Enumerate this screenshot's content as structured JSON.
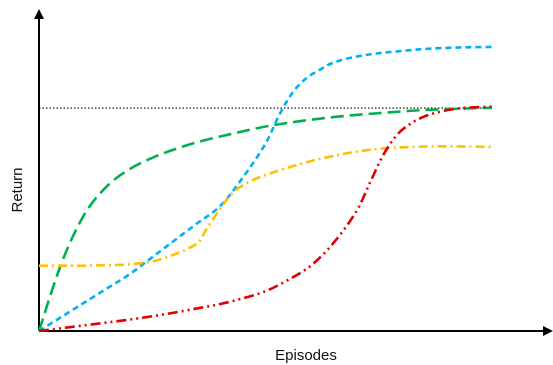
{
  "chart_data": {
    "type": "line",
    "title": "",
    "xlabel": "Episodes",
    "ylabel": "Return",
    "xlim": [
      0,
      100
    ],
    "ylim": [
      0,
      100
    ],
    "grid": false,
    "legend": "none",
    "reference_line": {
      "y": 78.5,
      "color": "#000000",
      "style": "dotted"
    },
    "series": [
      {
        "color": "#00b0f0",
        "style": "dashed",
        "x": [
          0,
          5,
          10,
          15,
          20,
          25,
          30,
          35,
          40,
          45,
          50,
          53,
          56,
          59,
          62,
          65,
          70,
          75,
          80,
          85,
          90,
          95,
          100
        ],
        "y": [
          0,
          5,
          10,
          15,
          20,
          26,
          32,
          38,
          44,
          54,
          66,
          76,
          84,
          89,
          92,
          94.5,
          96.6,
          97.8,
          98.6,
          99.3,
          99.7,
          99.9,
          100
        ]
      },
      {
        "color": "#00b050",
        "style": "long-dashed",
        "x": [
          0,
          5,
          10,
          15,
          20,
          25,
          30,
          35,
          40,
          45,
          50,
          55,
          60,
          65,
          70,
          75,
          80,
          85,
          90,
          95,
          100
        ],
        "y": [
          0,
          24,
          41,
          51,
          57,
          61,
          64,
          66.5,
          68.5,
          70.3,
          72,
          73.3,
          74.4,
          75.3,
          76.1,
          76.7,
          77.3,
          77.8,
          78.1,
          78.4,
          78.6
        ]
      },
      {
        "color": "#ffc000",
        "style": "dash-dot",
        "x": [
          0,
          5,
          10,
          15,
          20,
          25,
          30,
          35,
          37,
          40,
          43,
          47,
          52,
          57,
          62,
          67,
          72,
          77,
          82,
          87,
          92,
          100
        ],
        "y": [
          23,
          23,
          23,
          23.2,
          23.5,
          24.5,
          27,
          31,
          36,
          43,
          49,
          53,
          56,
          58.5,
          60.6,
          62.3,
          63.6,
          64.4,
          64.8,
          65,
          65,
          64.8
        ]
      },
      {
        "color": "#e00000",
        "style": "dash-dot-dot",
        "x": [
          0,
          5,
          10,
          15,
          20,
          25,
          30,
          35,
          40,
          45,
          50,
          55,
          60,
          65,
          70,
          73,
          76,
          79,
          82,
          85,
          88,
          91,
          94,
          97,
          100
        ],
        "y": [
          0,
          1,
          2,
          3,
          4,
          5.2,
          6.5,
          8,
          9.5,
          11.5,
          14,
          18,
          23,
          31,
          42,
          52,
          62,
          69,
          73,
          75.5,
          77,
          78,
          78.6,
          78.8,
          79
        ]
      }
    ]
  }
}
